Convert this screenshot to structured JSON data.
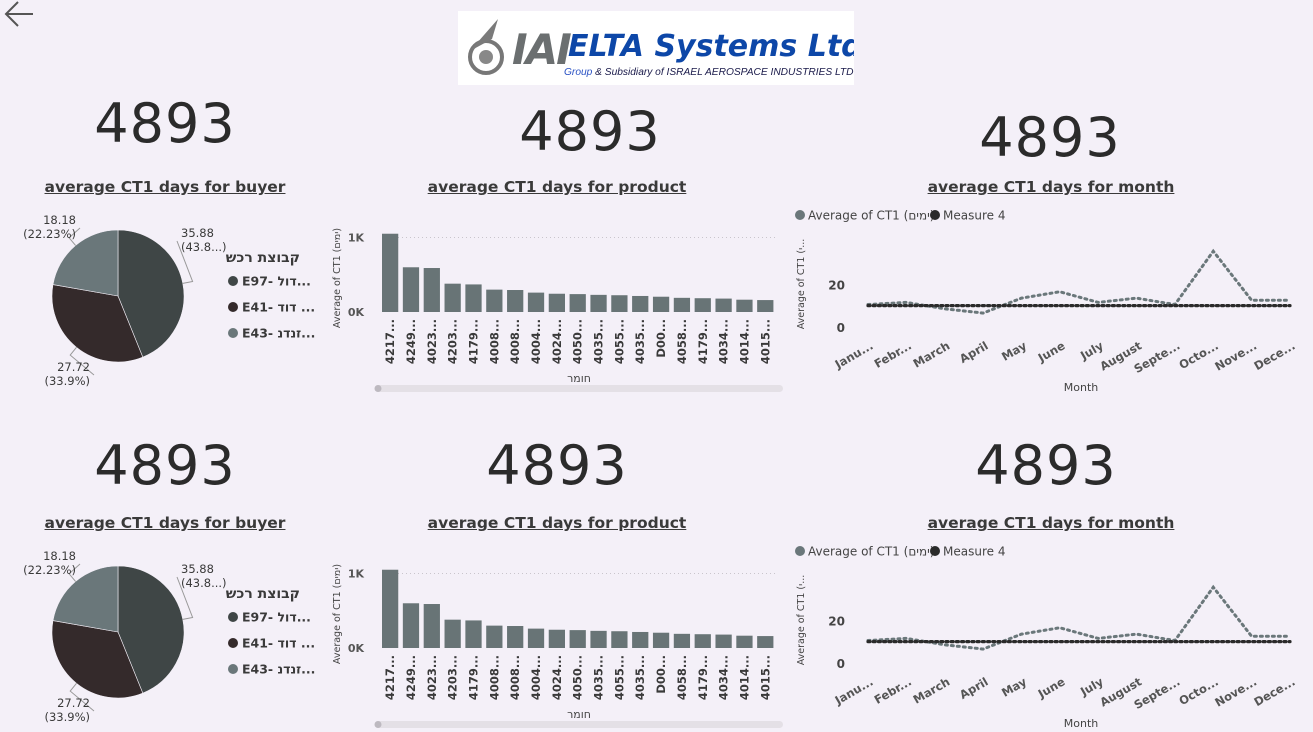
{
  "logo": {
    "mark": "IAI",
    "title": "ELTA Systems Ltd.",
    "subtitle_prefix": "Group",
    "subtitle_rest": " & Subsidiary of ISRAEL AEROSPACE INDUSTRIES LTD."
  },
  "colors": {
    "background": "#f4f0f8",
    "dark_slate": "#3f4646",
    "dark_brown": "#342a2b",
    "gray": "#6a777a",
    "bar": "#687476",
    "line_avg": "#6a777a",
    "line_measure": "#2a2a2a"
  },
  "icons": {
    "back": "arrow-left-icon"
  },
  "rows": [
    {
      "buyer": {
        "kpi": "4893",
        "title": "average CT1 days for buyer"
      },
      "product": {
        "kpi": "4893",
        "title": "average CT1 days for product"
      },
      "month": {
        "kpi": "4893",
        "title": "average CT1 days for month"
      }
    },
    {
      "buyer": {
        "kpi": "4893",
        "title": "average CT1 days for buyer"
      },
      "product": {
        "kpi": "4893",
        "title": "average CT1 days for product"
      },
      "month": {
        "kpi": "4893",
        "title": "average CT1 days for month"
      }
    }
  ],
  "chart_data": [
    {
      "type": "pie",
      "title": "average CT1 days for buyer",
      "legend_title": "קבוצת רכש",
      "legend_position": "right",
      "slices": [
        {
          "label": "E97- דול...",
          "value": 35.88,
          "data_label": "35.88",
          "pct_label": "(43.8...)",
          "color": "#3f4646"
        },
        {
          "label": "E41- דוד ...",
          "value": 27.72,
          "data_label": "27.72",
          "pct_label": "(33.9%)",
          "color": "#342a2b"
        },
        {
          "label": "E43- זנדנ...",
          "value": 18.18,
          "data_label": "18.18",
          "pct_label": "(22.23%)",
          "color": "#6a777a"
        }
      ]
    },
    {
      "type": "bar",
      "title": "average CT1 days for product",
      "xlabel": "חומר",
      "ylabel": "Average of CT1 (ימים)",
      "yticks": [
        "0K",
        "1K"
      ],
      "ylim": [
        0,
        1100
      ],
      "categories": [
        "4217...",
        "4249...",
        "4023...",
        "4203...",
        "4179...",
        "4008...",
        "4008...",
        "4004...",
        "4024...",
        "4050...",
        "4035...",
        "4055...",
        "4035...",
        "D00...",
        "4058...",
        "4179...",
        "4034...",
        "4014...",
        "4015..."
      ],
      "values": [
        1050,
        600,
        590,
        380,
        370,
        300,
        295,
        260,
        245,
        240,
        230,
        225,
        215,
        205,
        190,
        185,
        180,
        165,
        160
      ]
    },
    {
      "type": "line",
      "title": "average CT1 days for month",
      "xlabel": "Month",
      "ylabel": "Average of CT1 (י...",
      "yticks": [
        "0",
        "20"
      ],
      "ylim": [
        0,
        45
      ],
      "legend_position": "top-left",
      "categories": [
        "Janu...",
        "Febr...",
        "March",
        "April",
        "May",
        "June",
        "July",
        "August",
        "Septe...",
        "Octo...",
        "Nove...",
        "Dece..."
      ],
      "series": [
        {
          "name": "Average of CT1 (ימים)",
          "color": "#6a777a",
          "values": [
            11,
            12,
            9,
            7,
            14,
            17,
            12,
            14,
            11,
            36,
            13,
            13
          ]
        },
        {
          "name": "Measure 4",
          "color": "#2a2a2a",
          "values": [
            10.5,
            10.5,
            10.5,
            10.5,
            10.5,
            10.5,
            10.5,
            10.5,
            10.5,
            10.5,
            10.5,
            10.5
          ]
        }
      ]
    }
  ]
}
